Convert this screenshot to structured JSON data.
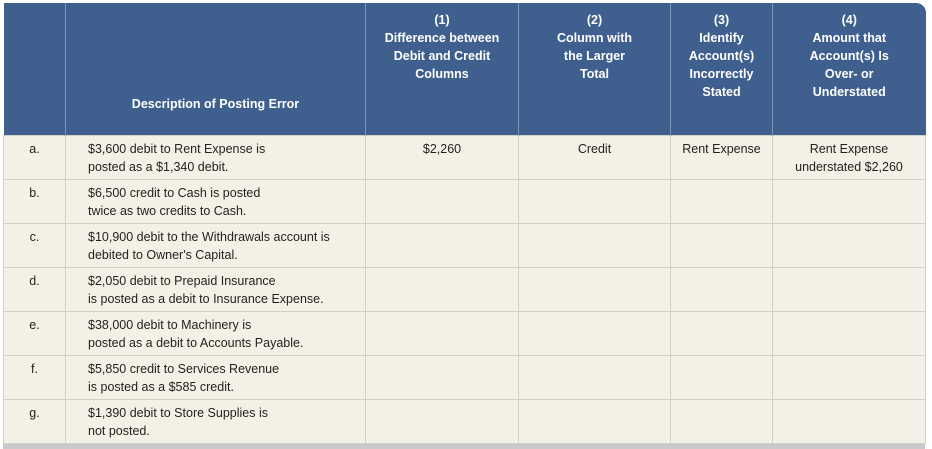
{
  "header": {
    "description": "Description of Posting Error",
    "columns": [
      {
        "number": "(1)",
        "title": [
          "Difference between",
          "Debit and Credit",
          "Columns"
        ]
      },
      {
        "number": "(2)",
        "title": [
          "Column with",
          "the Larger",
          "Total"
        ]
      },
      {
        "number": "(3)",
        "title": [
          "Identify",
          "Account(s)",
          "Incorrectly",
          "Stated"
        ]
      },
      {
        "number": "(4)",
        "title": [
          "Amount that",
          "Account(s) Is",
          "Over- or",
          "Understated"
        ]
      }
    ]
  },
  "rows": [
    {
      "letter": "a.",
      "description": [
        "$3,600 debit to Rent Expense is",
        "posted as a $1,340 debit."
      ],
      "answers": [
        [
          "$2,260"
        ],
        [
          "Credit"
        ],
        [
          "Rent Expense"
        ],
        [
          "Rent Expense",
          "understated $2,260"
        ]
      ]
    },
    {
      "letter": "b.",
      "description": [
        "$6,500 credit to Cash is posted",
        "twice as two credits to Cash."
      ]
    },
    {
      "letter": "c.",
      "description": [
        "$10,900 debit to the Withdrawals account is",
        "debited to Owner's Capital."
      ]
    },
    {
      "letter": "d.",
      "description": [
        "$2,050 debit to Prepaid Insurance",
        "is posted as a debit to Insurance Expense."
      ]
    },
    {
      "letter": "e.",
      "description": [
        "$38,000 debit to Machinery is",
        "posted as a debit to Accounts Payable."
      ]
    },
    {
      "letter": "f.",
      "description": [
        "$5,850 credit to Services Revenue",
        "is posted as a $585 credit."
      ]
    },
    {
      "letter": "g.",
      "description": [
        "$1,390 debit to Store Supplies is",
        "not posted."
      ]
    }
  ]
}
